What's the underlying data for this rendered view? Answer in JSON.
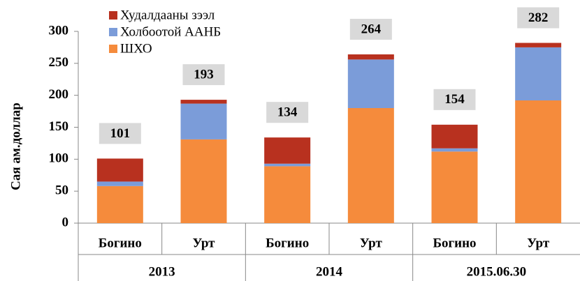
{
  "chart_data": {
    "type": "stacked_bar",
    "ylabel": "Сая ам.доллар",
    "categories": [
      "Богино",
      "Урт",
      "Богино",
      "Урт",
      "Богино",
      "Урт"
    ],
    "groups": [
      "2013",
      "2014",
      "2015.06.30"
    ],
    "series": [
      {
        "name": "ШХО",
        "color": "#f58b3c",
        "values": [
          58,
          131,
          89,
          180,
          112,
          192
        ]
      },
      {
        "name": "Холбоотой ААНБ",
        "color": "#7b9cd9",
        "values": [
          7,
          56,
          4,
          76,
          5,
          83
        ]
      },
      {
        "name": "Худалдааны зээл",
        "color": "#b8311f",
        "values": [
          36,
          6,
          41,
          8,
          37,
          7
        ]
      }
    ],
    "totals": [
      101,
      193,
      134,
      264,
      154,
      282
    ],
    "ylim": [
      0,
      300
    ],
    "yticks": [
      0,
      50,
      100,
      150,
      200,
      250,
      300
    ]
  }
}
